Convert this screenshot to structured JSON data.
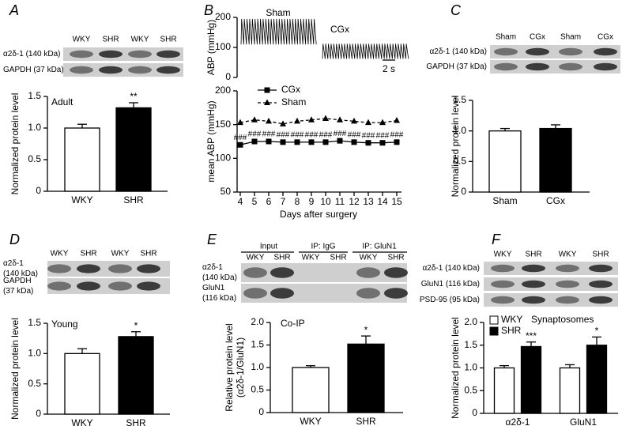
{
  "chart_data": [
    {
      "panel": "A",
      "type": "bar",
      "title": "Adult",
      "ylabel": "Normalized protein level",
      "categories": [
        "WKY",
        "SHR"
      ],
      "values": [
        1.0,
        1.32
      ],
      "errors": [
        0.06,
        0.08
      ],
      "colors": [
        "#ffffff",
        "#000000"
      ],
      "annotations": [
        {
          "category": "SHR",
          "text": "**"
        }
      ],
      "ylim": [
        0,
        1.5
      ],
      "yticks": [
        0,
        0.5,
        {
          "value": 1,
          "label": "1.0"
        },
        1.5
      ],
      "blot": {
        "lanes": [
          "WKY",
          "SHR",
          "WKY",
          "SHR"
        ],
        "rows": [
          [
            "α2δ-1 (140 kDa)"
          ],
          [
            "GAPDH (37 kDa)"
          ]
        ]
      }
    },
    {
      "panel": "B",
      "type": "trace",
      "ylabel": "ABP (mmHg)",
      "ylim": [
        0,
        200
      ],
      "yticks": [
        0,
        100,
        200
      ],
      "series": [
        {
          "name": "Sham",
          "range": [
            110,
            195
          ]
        },
        {
          "name": "CGx",
          "range": [
            62,
            112
          ]
        }
      ],
      "scale_bar": "2 s"
    },
    {
      "type": "line",
      "xlabel": "Days after surgery",
      "ylabel": "mean ABP (mmHg)",
      "x": [
        4,
        5,
        6,
        7,
        8,
        9,
        10,
        11,
        12,
        13,
        14,
        15
      ],
      "xlim": [
        4,
        15
      ],
      "xticks": [
        4,
        5,
        6,
        7,
        8,
        9,
        10,
        11,
        12,
        13,
        14,
        15
      ],
      "ylim": [
        50,
        200
      ],
      "yticks": [
        50,
        100,
        150,
        200
      ],
      "series": [
        {
          "name": "CGx",
          "color": "#000000",
          "marker": "square",
          "dash": false,
          "values": [
            120,
            125,
            125,
            124,
            124,
            124,
            124,
            126,
            124,
            123,
            123,
            124
          ],
          "point_annotations": [
            "###",
            "###",
            "###",
            "###",
            "###",
            "###",
            "###",
            "###",
            "###",
            "###",
            "###",
            "###"
          ]
        },
        {
          "name": "Sham",
          "color": "#000000",
          "marker": "triangle",
          "dash": true,
          "values": [
            153,
            157,
            155,
            151,
            155,
            157,
            159,
            157,
            155,
            153,
            153,
            156
          ]
        }
      ]
    },
    {
      "panel": "C",
      "type": "bar",
      "ylabel": "Normalized protein level",
      "categories": [
        "Sham",
        "CGx"
      ],
      "values": [
        1.0,
        1.04
      ],
      "errors": [
        0.04,
        0.06
      ],
      "colors": [
        "#ffffff",
        "#000000"
      ],
      "ylim": [
        0,
        1.5
      ],
      "yticks": [
        0,
        0.5,
        {
          "value": 1,
          "label": "1.0"
        },
        1.5
      ],
      "blot": {
        "lanes": [
          "Sham",
          "CGx",
          "Sham",
          "CGx"
        ],
        "rows": [
          [
            "α2δ-1 (140 kDa)"
          ],
          [
            "GAPDH (37 kDa)"
          ]
        ]
      }
    },
    {
      "panel": "D",
      "type": "bar",
      "title": "Young",
      "ylabel": "Normalized protein level",
      "categories": [
        "WKY",
        "SHR"
      ],
      "values": [
        1.0,
        1.28
      ],
      "errors": [
        0.08,
        0.08
      ],
      "colors": [
        "#ffffff",
        "#000000"
      ],
      "annotations": [
        {
          "category": "SHR",
          "text": "*"
        }
      ],
      "ylim": [
        0,
        1.5
      ],
      "yticks": [
        0,
        0.5,
        {
          "value": 1,
          "label": "1.0"
        },
        1.5
      ],
      "blot": {
        "lanes": [
          "WKY",
          "SHR",
          "WKY",
          "SHR"
        ],
        "rows": [
          [
            "α2δ-1",
            "(140 kDa)"
          ],
          [
            "GAPDH",
            "(37 kDa)"
          ]
        ]
      }
    },
    {
      "panel": "E",
      "type": "bar",
      "title": "Co-IP",
      "ylabel": [
        "Relative protein level",
        "(α2δ-1/GluN1)"
      ],
      "categories": [
        "WKY",
        "SHR"
      ],
      "values": [
        1.0,
        1.52
      ],
      "errors": [
        0.04,
        0.18
      ],
      "colors": [
        "#ffffff",
        "#000000"
      ],
      "annotations": [
        {
          "category": "SHR",
          "text": "*"
        }
      ],
      "ylim": [
        0,
        2
      ],
      "yticks": [
        0,
        0.5,
        {
          "value": 1,
          "label": "1.0"
        },
        1.5,
        {
          "value": 2,
          "label": "2.0"
        }
      ],
      "blot": {
        "groups": [
          "Input",
          "IP: IgG",
          "IP: GluN1"
        ],
        "lanes": [
          "WKY",
          "SHR",
          "WKY",
          "SHR",
          "WKY",
          "SHR"
        ],
        "rows": [
          [
            "α2δ-1",
            "(140 kDa)"
          ],
          [
            "GluN1",
            "(116 kDa)"
          ]
        ]
      }
    },
    {
      "panel": "F",
      "type": "grouped_bar",
      "ylabel": "Normalized protein level",
      "legend_title": "Synaptosomes",
      "categories": [
        "α2δ-1",
        "GluN1"
      ],
      "series": [
        {
          "name": "WKY",
          "color": "#ffffff",
          "values": [
            1.0,
            1.0
          ],
          "errors": [
            0.05,
            0.07
          ]
        },
        {
          "name": "SHR",
          "color": "#000000",
          "values": [
            1.47,
            1.5
          ],
          "errors": [
            0.1,
            0.18
          ],
          "annotations": [
            "***",
            "*"
          ]
        }
      ],
      "ylim": [
        0,
        2
      ],
      "yticks": [
        0,
        0.5,
        {
          "value": 1,
          "label": "1.0"
        },
        1.5,
        {
          "value": 2,
          "label": "2.0"
        }
      ],
      "blot": {
        "lanes": [
          "WKY",
          "SHR",
          "WKY",
          "SHR"
        ],
        "rows": [
          [
            "α2δ-1 (140 kDa)"
          ],
          [
            "GluN1 (116 kDa)"
          ],
          [
            "PSD-95 (95 kDa)"
          ]
        ]
      }
    }
  ]
}
